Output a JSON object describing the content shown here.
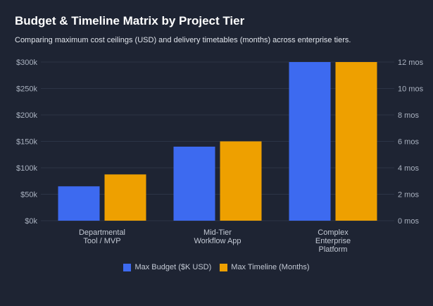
{
  "header": {
    "title": "Budget & Timeline Matrix by Project Tier",
    "subtitle": "Comparing maximum cost ceilings (USD) and delivery timetables (months) across enterprise tiers."
  },
  "chart_data": {
    "type": "bar",
    "title": "Budget & Timeline Matrix by Project Tier",
    "subtitle": "Comparing maximum cost ceilings (USD) and delivery timetables (months) across enterprise tiers.",
    "categories": [
      [
        "Departmental",
        "Tool / MVP"
      ],
      [
        "Mid-Tier",
        "Workflow App"
      ],
      [
        "Complex",
        "Enterprise",
        "Platform"
      ]
    ],
    "series": [
      {
        "name": "Max Budget ($K USD)",
        "axis": "left",
        "color": "#3d6af0",
        "values": [
          65,
          140,
          300
        ]
      },
      {
        "name": "Max Timeline (Months)",
        "axis": "right",
        "color": "#eea000",
        "values": [
          3.5,
          6,
          12
        ]
      }
    ],
    "y_left": {
      "lim": [
        0,
        300
      ],
      "ticks": [
        0,
        50,
        100,
        150,
        200,
        250,
        300
      ],
      "tick_labels": [
        "$0k",
        "$50k",
        "$100k",
        "$150k",
        "$200k",
        "$250k",
        "$300k"
      ]
    },
    "y_right": {
      "lim": [
        0,
        12
      ],
      "ticks": [
        0,
        2,
        4,
        6,
        8,
        10,
        12
      ],
      "tick_labels": [
        "0 mos",
        "2 mos",
        "4 mos",
        "6 mos",
        "8 mos",
        "10 mos",
        "12 mos"
      ]
    },
    "grid": true,
    "legend_position": "bottom-center",
    "background_color": "#1e2433",
    "grid_color": "#2c3446"
  }
}
